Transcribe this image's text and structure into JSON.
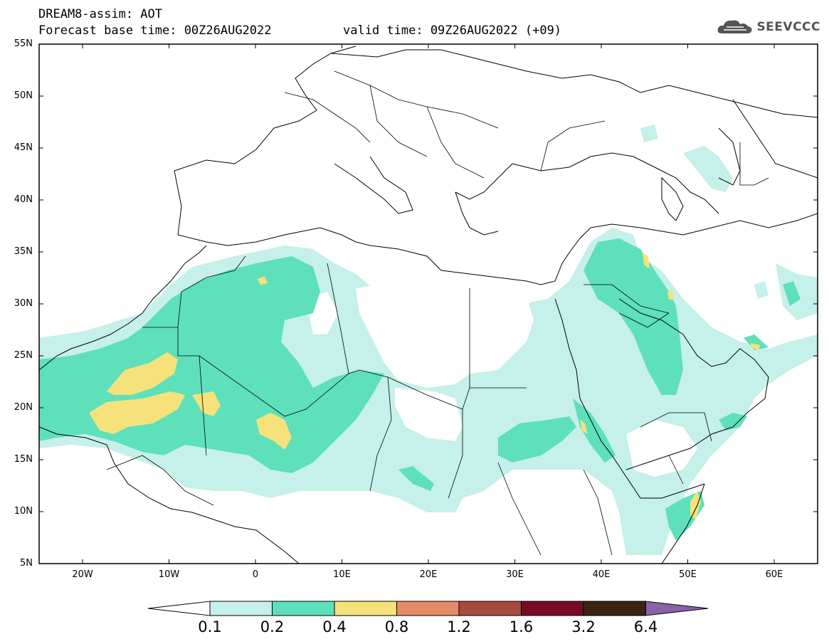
{
  "header": {
    "title_line1": "DREAM8-assim: AOT",
    "forecast_base": "Forecast base time: 00Z26AUG2022",
    "valid_time": "valid time: 09Z26AUG2022 (+09)"
  },
  "logo": {
    "text": "SEEVCCC",
    "icon": "cloud-icon"
  },
  "map": {
    "region": "North Africa, Europe and Middle East",
    "latitude_labels": [
      "55N",
      "50N",
      "45N",
      "40N",
      "35N",
      "30N",
      "25N",
      "20N",
      "15N",
      "10N",
      "5N"
    ],
    "longitude_labels": [
      "20W",
      "10W",
      "0",
      "10E",
      "20E",
      "30E",
      "40E",
      "50E",
      "60E"
    ]
  },
  "legend": {
    "levels": [
      "0.1",
      "0.2",
      "0.4",
      "0.8",
      "1.2",
      "1.6",
      "3.2",
      "6.4"
    ],
    "colors": [
      "#ffffff",
      "#c6f0ea",
      "#5ee0bb",
      "#f5e27a",
      "#e58c66",
      "#a64b3d",
      "#780a27",
      "#3b2414",
      "#8a62a6"
    ]
  }
}
